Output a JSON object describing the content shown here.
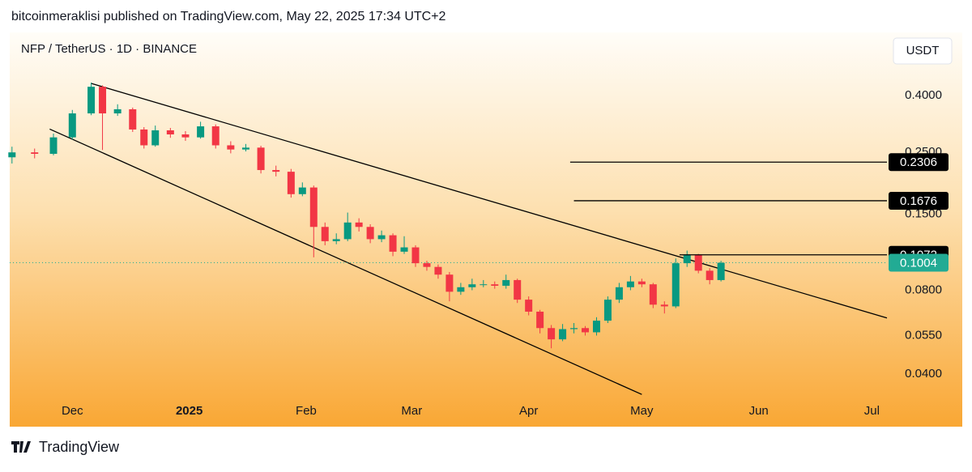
{
  "header": {
    "published": "bitcoinmeraklisi published on TradingView.com, May 22, 2025 17:34 UTC+2"
  },
  "footer": {
    "brand": "TradingView"
  },
  "chart_data": {
    "type": "candlestick",
    "title": "NFP / TetherUS · 1D · BINANCE",
    "currency": "USDT",
    "log_scale": true,
    "up_color": "#089981",
    "down_color": "#f23645",
    "xlim": [
      -16.6,
      216
    ],
    "xticks": [
      {
        "value": 0,
        "label": "Dec"
      },
      {
        "value": 31,
        "label": "2025",
        "bold": true
      },
      {
        "value": 62,
        "label": "Feb"
      },
      {
        "value": 90,
        "label": "Mar"
      },
      {
        "value": 121,
        "label": "Apr"
      },
      {
        "value": 151,
        "label": "May"
      },
      {
        "value": 182,
        "label": "Jun"
      },
      {
        "value": 212,
        "label": "Jul"
      }
    ],
    "ylim": [
      0.0259,
      0.665
    ],
    "yticks": [
      {
        "value": 0.4,
        "label": "0.4000"
      },
      {
        "value": 0.25,
        "label": "0.2500"
      },
      {
        "value": 0.15,
        "label": "0.1500"
      },
      {
        "value": 0.08,
        "label": "0.0800"
      },
      {
        "value": 0.055,
        "label": "0.0550"
      },
      {
        "value": 0.04,
        "label": "0.0400"
      }
    ],
    "x": [
      -16,
      -10,
      -5,
      0,
      5,
      8,
      12,
      16,
      19,
      22,
      26,
      30,
      34,
      38,
      42,
      46,
      50,
      54,
      58,
      61,
      64,
      67,
      70,
      73,
      76,
      79,
      82,
      85,
      88,
      91,
      94,
      97,
      100,
      103,
      106,
      109,
      112,
      115,
      118,
      121,
      124,
      127,
      130,
      133,
      136,
      139,
      142,
      145,
      148,
      151,
      154,
      157,
      160,
      163,
      166,
      169,
      172
    ],
    "open": [
      0.24,
      0.25,
      0.247,
      0.283,
      0.345,
      0.43,
      0.345,
      0.357,
      0.302,
      0.265,
      0.3,
      0.29,
      0.283,
      0.31,
      0.265,
      0.256,
      0.26,
      0.216,
      0.213,
      0.177,
      0.187,
      0.135,
      0.12,
      0.122,
      0.14,
      0.135,
      0.122,
      0.126,
      0.11,
      0.114,
      0.1,
      0.097,
      0.091,
      0.079,
      0.082,
      0.084,
      0.084,
      0.083,
      0.087,
      0.074,
      0.067,
      0.0585,
      0.0533,
      0.058,
      0.0585,
      0.0565,
      0.0622,
      0.074,
      0.082,
      0.086,
      0.084,
      0.071,
      0.07,
      0.1,
      0.107,
      0.094,
      0.087
    ],
    "high": [
      0.262,
      0.258,
      0.292,
      0.355,
      0.445,
      0.435,
      0.372,
      0.362,
      0.308,
      0.312,
      0.306,
      0.298,
      0.322,
      0.315,
      0.274,
      0.268,
      0.264,
      0.224,
      0.218,
      0.195,
      0.19,
      0.14,
      0.128,
      0.152,
      0.145,
      0.138,
      0.131,
      0.128,
      0.125,
      0.116,
      0.102,
      0.099,
      0.093,
      0.085,
      0.088,
      0.087,
      0.086,
      0.091,
      0.088,
      0.076,
      0.068,
      0.06,
      0.0605,
      0.061,
      0.0595,
      0.064,
      0.076,
      0.085,
      0.09,
      0.088,
      0.085,
      0.073,
      0.104,
      0.111,
      0.108,
      0.096,
      0.102
    ],
    "low": [
      0.228,
      0.238,
      0.244,
      0.278,
      0.34,
      0.255,
      0.338,
      0.296,
      0.258,
      0.262,
      0.282,
      0.275,
      0.28,
      0.258,
      0.248,
      0.252,
      0.21,
      0.205,
      0.172,
      0.174,
      0.105,
      0.116,
      0.117,
      0.12,
      0.13,
      0.118,
      0.119,
      0.106,
      0.108,
      0.097,
      0.094,
      0.088,
      0.073,
      0.077,
      0.08,
      0.082,
      0.081,
      0.081,
      0.072,
      0.065,
      0.056,
      0.0495,
      0.0525,
      0.056,
      0.055,
      0.055,
      0.061,
      0.072,
      0.08,
      0.082,
      0.069,
      0.066,
      0.069,
      0.097,
      0.092,
      0.084,
      0.086
    ],
    "close": [
      0.25,
      0.247,
      0.283,
      0.345,
      0.43,
      0.345,
      0.357,
      0.302,
      0.265,
      0.3,
      0.29,
      0.283,
      0.31,
      0.265,
      0.256,
      0.26,
      0.216,
      0.213,
      0.177,
      0.187,
      0.135,
      0.12,
      0.122,
      0.14,
      0.135,
      0.122,
      0.126,
      0.11,
      0.114,
      0.1,
      0.097,
      0.091,
      0.079,
      0.082,
      0.084,
      0.084,
      0.083,
      0.087,
      0.074,
      0.067,
      0.0585,
      0.0533,
      0.058,
      0.0585,
      0.0565,
      0.0622,
      0.074,
      0.082,
      0.086,
      0.084,
      0.071,
      0.07,
      0.1,
      0.107,
      0.094,
      0.087,
      0.1004
    ],
    "trendlines": [
      {
        "x": [
          5,
          216
        ],
        "y": [
          0.442,
          0.0636
        ],
        "color": "#000000"
      },
      {
        "x": [
          -6,
          151
        ],
        "y": [
          0.303,
          0.0338
        ],
        "color": "#000000"
      }
    ],
    "levels": [
      {
        "value": 0.2306,
        "from": 132,
        "color": "#000000"
      },
      {
        "value": 0.1676,
        "from": 133,
        "color": "#000000"
      },
      {
        "value": 0.1072,
        "from": 161,
        "color": "#000000"
      }
    ],
    "last_price": {
      "value": 0.1004,
      "color": "#22ab94"
    }
  }
}
